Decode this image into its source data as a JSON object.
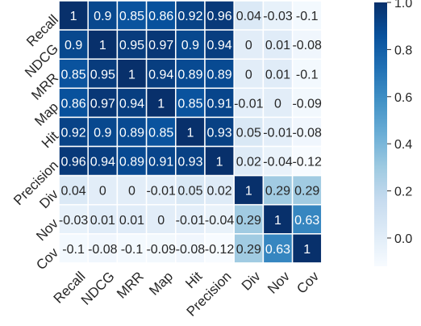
{
  "chart_data": {
    "type": "heatmap",
    "title": "",
    "xlabel": "",
    "ylabel": "",
    "x_labels": [
      "Recall",
      "NDCG",
      "MRR",
      "Map",
      "Hit",
      "Precision",
      "Div",
      "Nov",
      "Cov"
    ],
    "y_labels": [
      "Recall",
      "NDCG",
      "MRR",
      "Map",
      "Hit",
      "Precision",
      "Div",
      "Nov",
      "Cov"
    ],
    "cells": [
      [
        "1",
        "0.9",
        "0.85",
        "0.86",
        "0.92",
        "0.96",
        "0.04",
        "-0.03",
        "-0.1"
      ],
      [
        "0.9",
        "1",
        "0.95",
        "0.97",
        "0.9",
        "0.94",
        "0",
        "0.01",
        "-0.08"
      ],
      [
        "0.85",
        "0.95",
        "1",
        "0.94",
        "0.89",
        "0.89",
        "0",
        "0.01",
        "-0.1"
      ],
      [
        "0.86",
        "0.97",
        "0.94",
        "1",
        "0.85",
        "0.91",
        "-0.01",
        "0",
        "-0.09"
      ],
      [
        "0.92",
        "0.9",
        "0.89",
        "0.85",
        "1",
        "0.93",
        "0.05",
        "-0.01",
        "-0.08"
      ],
      [
        "0.96",
        "0.94",
        "0.89",
        "0.91",
        "0.93",
        "1",
        "0.02",
        "-0.04",
        "-0.12"
      ],
      [
        "0.04",
        "0",
        "0",
        "-0.01",
        "0.05",
        "0.02",
        "1",
        "0.29",
        "0.29"
      ],
      [
        "-0.03",
        "0.01",
        "0.01",
        "0",
        "-0.01",
        "-0.04",
        "0.29",
        "1",
        "0.63"
      ],
      [
        "-0.1",
        "-0.08",
        "-0.1",
        "-0.09",
        "-0.08",
        "-0.12",
        "0.29",
        "0.63",
        "1"
      ]
    ],
    "colorbar": {
      "min": -0.12,
      "max": 1.0,
      "ticks": [
        "0.0",
        "0.2",
        "0.4",
        "0.6",
        "0.8",
        "1.0"
      ],
      "colormap": "Blues"
    },
    "grid": true,
    "cell_border_color": "#ffffff"
  }
}
